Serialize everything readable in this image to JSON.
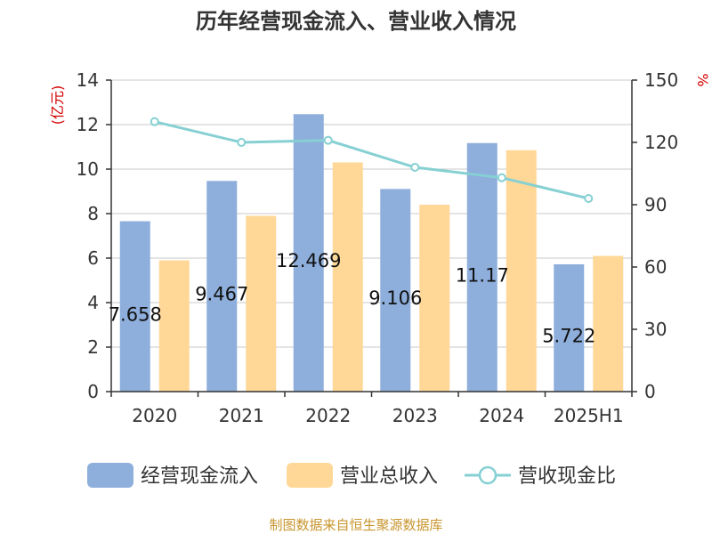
{
  "title": "历年经营现金流入、营业收入情况",
  "source": "制图数据来自恒生聚源数据库",
  "chart_data": {
    "type": "bar",
    "categories": [
      "2020",
      "2021",
      "2022",
      "2023",
      "2024",
      "2025H1"
    ],
    "left_axis": {
      "label": "(亿元)",
      "ylim": [
        0,
        14
      ],
      "ticks": [
        0,
        2,
        4,
        6,
        8,
        10,
        12,
        14
      ]
    },
    "right_axis": {
      "label": "%",
      "ylim": [
        0,
        150
      ],
      "ticks": [
        0,
        30,
        60,
        90,
        120,
        150
      ]
    },
    "grid": true,
    "legend_position": "bottom",
    "series": [
      {
        "name": "经营现金流入",
        "type": "bar",
        "axis": "left",
        "color": "#8eaedc",
        "values": [
          7.658,
          9.467,
          12.469,
          9.106,
          11.17,
          5.722
        ],
        "labels": [
          "7.658",
          "9.467",
          "12.469",
          "9.106",
          "11.17",
          "5.722"
        ]
      },
      {
        "name": "营业总收入",
        "type": "bar",
        "axis": "left",
        "color": "#ffd898",
        "values": [
          5.9,
          7.9,
          10.3,
          8.4,
          10.85,
          6.1
        ]
      },
      {
        "name": "营收现金比",
        "type": "line",
        "axis": "right",
        "color": "#86d0d3",
        "values": [
          130,
          120,
          121,
          108,
          103,
          93
        ]
      }
    ]
  }
}
